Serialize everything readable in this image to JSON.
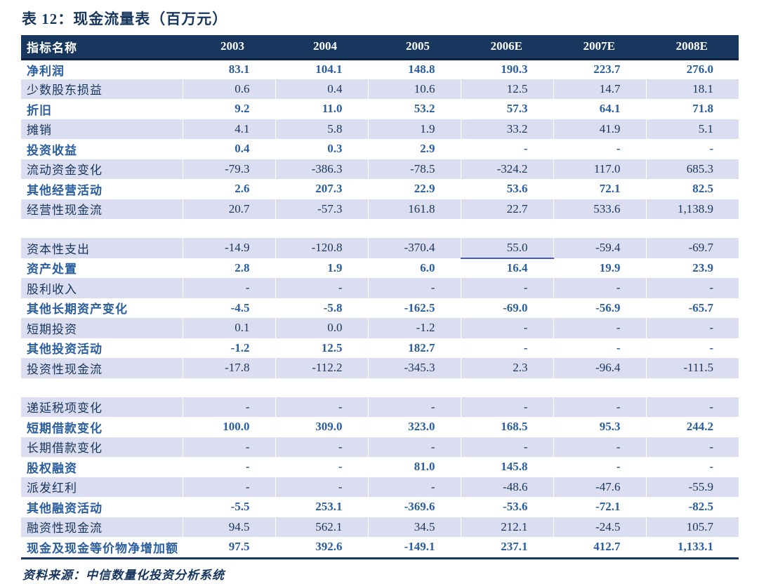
{
  "title": "表 12：现金流量表（百万元）",
  "source_note": "资料来源：中信数量化投资分析系统",
  "colors": {
    "header_bg": "#17375E",
    "header_text": "#FFFFFF",
    "header_rule": "#0D2240",
    "shaded_row_bg": "#DBDDF1",
    "shaded_row_text": "#17365D",
    "plain_row_text": "#2A5E9E",
    "title_text": "#17375D",
    "accent_underline": "#4A5BC8",
    "bottom_rule": "#17375E",
    "page_bg": "#FFFFFF"
  },
  "chart_data": {
    "type": "table",
    "columns": [
      "指标名称",
      "2003",
      "2004",
      "2005",
      "2006E",
      "2007E",
      "2008E"
    ],
    "rows": [
      {
        "label": "净利润",
        "values": [
          "83.1",
          "104.1",
          "148.8",
          "190.3",
          "223.7",
          "276.0"
        ],
        "shaded": false
      },
      {
        "label": "少数股东损益",
        "values": [
          "0.6",
          "0.4",
          "10.6",
          "12.5",
          "14.7",
          "18.1"
        ],
        "shaded": true
      },
      {
        "label": "折旧",
        "values": [
          "9.2",
          "11.0",
          "53.2",
          "57.3",
          "64.1",
          "71.8"
        ],
        "shaded": false
      },
      {
        "label": "摊销",
        "values": [
          "4.1",
          "5.8",
          "1.9",
          "33.2",
          "41.9",
          "5.1"
        ],
        "shaded": true
      },
      {
        "label": "投资收益",
        "values": [
          "0.4",
          "0.3",
          "2.9",
          "-",
          "-",
          "-"
        ],
        "shaded": false
      },
      {
        "label": "流动资金变化",
        "values": [
          "-79.3",
          "-386.3",
          "-78.5",
          "-324.2",
          "117.0",
          "685.3"
        ],
        "shaded": true
      },
      {
        "label": "其他经营活动",
        "values": [
          "2.6",
          "207.3",
          "22.9",
          "53.6",
          "72.1",
          "82.5"
        ],
        "shaded": false
      },
      {
        "label": "经营性现金流",
        "values": [
          "20.7",
          "-57.3",
          "161.8",
          "22.7",
          "533.6",
          "1,138.9"
        ],
        "shaded": true
      },
      {
        "gap": true
      },
      {
        "label": "资本性支出",
        "values": [
          "-14.9",
          "-120.8",
          "-370.4",
          "55.0",
          "-59.4",
          "-69.7"
        ],
        "shaded": true,
        "underline_col": 3
      },
      {
        "label": "资产处置",
        "values": [
          "2.8",
          "1.9",
          "6.0",
          "16.4",
          "19.9",
          "23.9"
        ],
        "shaded": false
      },
      {
        "label": "股利收入",
        "values": [
          "-",
          "-",
          "-",
          "-",
          "-",
          "-"
        ],
        "shaded": true
      },
      {
        "label": "其他长期资产变化",
        "values": [
          "-4.5",
          "-5.8",
          "-162.5",
          "-69.0",
          "-56.9",
          "-65.7"
        ],
        "shaded": false
      },
      {
        "label": "短期投资",
        "values": [
          "0.1",
          "0.0",
          "-1.2",
          "-",
          "-",
          "-"
        ],
        "shaded": true
      },
      {
        "label": "其他投资活动",
        "values": [
          "-1.2",
          "12.5",
          "182.7",
          "-",
          "-",
          "-"
        ],
        "shaded": false
      },
      {
        "label": "投资性现金流",
        "values": [
          "-17.8",
          "-112.2",
          "-345.3",
          "2.3",
          "-96.4",
          "-111.5"
        ],
        "shaded": true
      },
      {
        "gap": true
      },
      {
        "label": "递延税项变化",
        "values": [
          "-",
          "-",
          "-",
          "-",
          "-",
          "-"
        ],
        "shaded": true
      },
      {
        "label": "短期借款变化",
        "values": [
          "100.0",
          "309.0",
          "323.0",
          "168.5",
          "95.3",
          "244.2"
        ],
        "shaded": false
      },
      {
        "label": "长期借款变化",
        "values": [
          "-",
          "-",
          "-",
          "-",
          "-",
          "-"
        ],
        "shaded": true
      },
      {
        "label": "股权融资",
        "values": [
          "-",
          "-",
          "81.0",
          "145.8",
          "-",
          "-"
        ],
        "shaded": false
      },
      {
        "label": "派发红利",
        "values": [
          "-",
          "-",
          "-",
          "-48.6",
          "-47.6",
          "-55.9"
        ],
        "shaded": true
      },
      {
        "label": "其他融资活动",
        "values": [
          "-5.5",
          "253.1",
          "-369.6",
          "-53.6",
          "-72.1",
          "-82.5"
        ],
        "shaded": false
      },
      {
        "label": "融资性现金流",
        "values": [
          "94.5",
          "562.1",
          "34.5",
          "212.1",
          "-24.5",
          "105.7"
        ],
        "shaded": true
      },
      {
        "label": "现金及现金等价物净增加额",
        "values": [
          "97.5",
          "392.6",
          "-149.1",
          "237.1",
          "412.7",
          "1,133.1"
        ],
        "shaded": false
      }
    ]
  }
}
